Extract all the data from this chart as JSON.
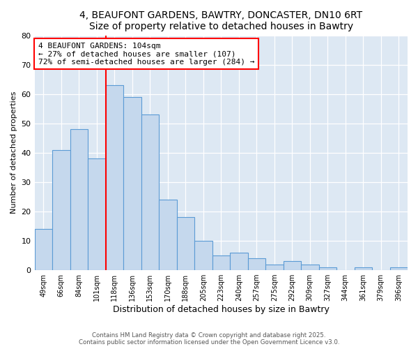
{
  "title": "4, BEAUFONT GARDENS, BAWTRY, DONCASTER, DN10 6RT",
  "subtitle": "Size of property relative to detached houses in Bawtry",
  "xlabel": "Distribution of detached houses by size in Bawtry",
  "ylabel": "Number of detached properties",
  "bar_labels": [
    "49sqm",
    "66sqm",
    "84sqm",
    "101sqm",
    "118sqm",
    "136sqm",
    "153sqm",
    "170sqm",
    "188sqm",
    "205sqm",
    "223sqm",
    "240sqm",
    "257sqm",
    "275sqm",
    "292sqm",
    "309sqm",
    "327sqm",
    "344sqm",
    "361sqm",
    "379sqm",
    "396sqm"
  ],
  "bar_values": [
    14,
    41,
    48,
    38,
    63,
    59,
    53,
    24,
    18,
    10,
    5,
    6,
    4,
    2,
    3,
    2,
    1,
    0,
    1,
    0,
    1
  ],
  "bar_color": "#c5d8ed",
  "bar_edge_color": "#5b9bd5",
  "annotation_text_line1": "4 BEAUFONT GARDENS: 104sqm",
  "annotation_text_line2": "← 27% of detached houses are smaller (107)",
  "annotation_text_line3": "72% of semi-detached houses are larger (284) →",
  "annotation_box_color": "white",
  "annotation_box_edge_color": "red",
  "vline_color": "red",
  "vline_x": 3.5,
  "ylim": [
    0,
    80
  ],
  "yticks": [
    0,
    10,
    20,
    30,
    40,
    50,
    60,
    70,
    80
  ],
  "background_color": "#dde8f3",
  "footer_line1": "Contains HM Land Registry data © Crown copyright and database right 2025.",
  "footer_line2": "Contains public sector information licensed under the Open Government Licence v3.0.",
  "title_fontsize": 10,
  "subtitle_fontsize": 9,
  "figsize": [
    6.0,
    5.0
  ],
  "dpi": 100
}
